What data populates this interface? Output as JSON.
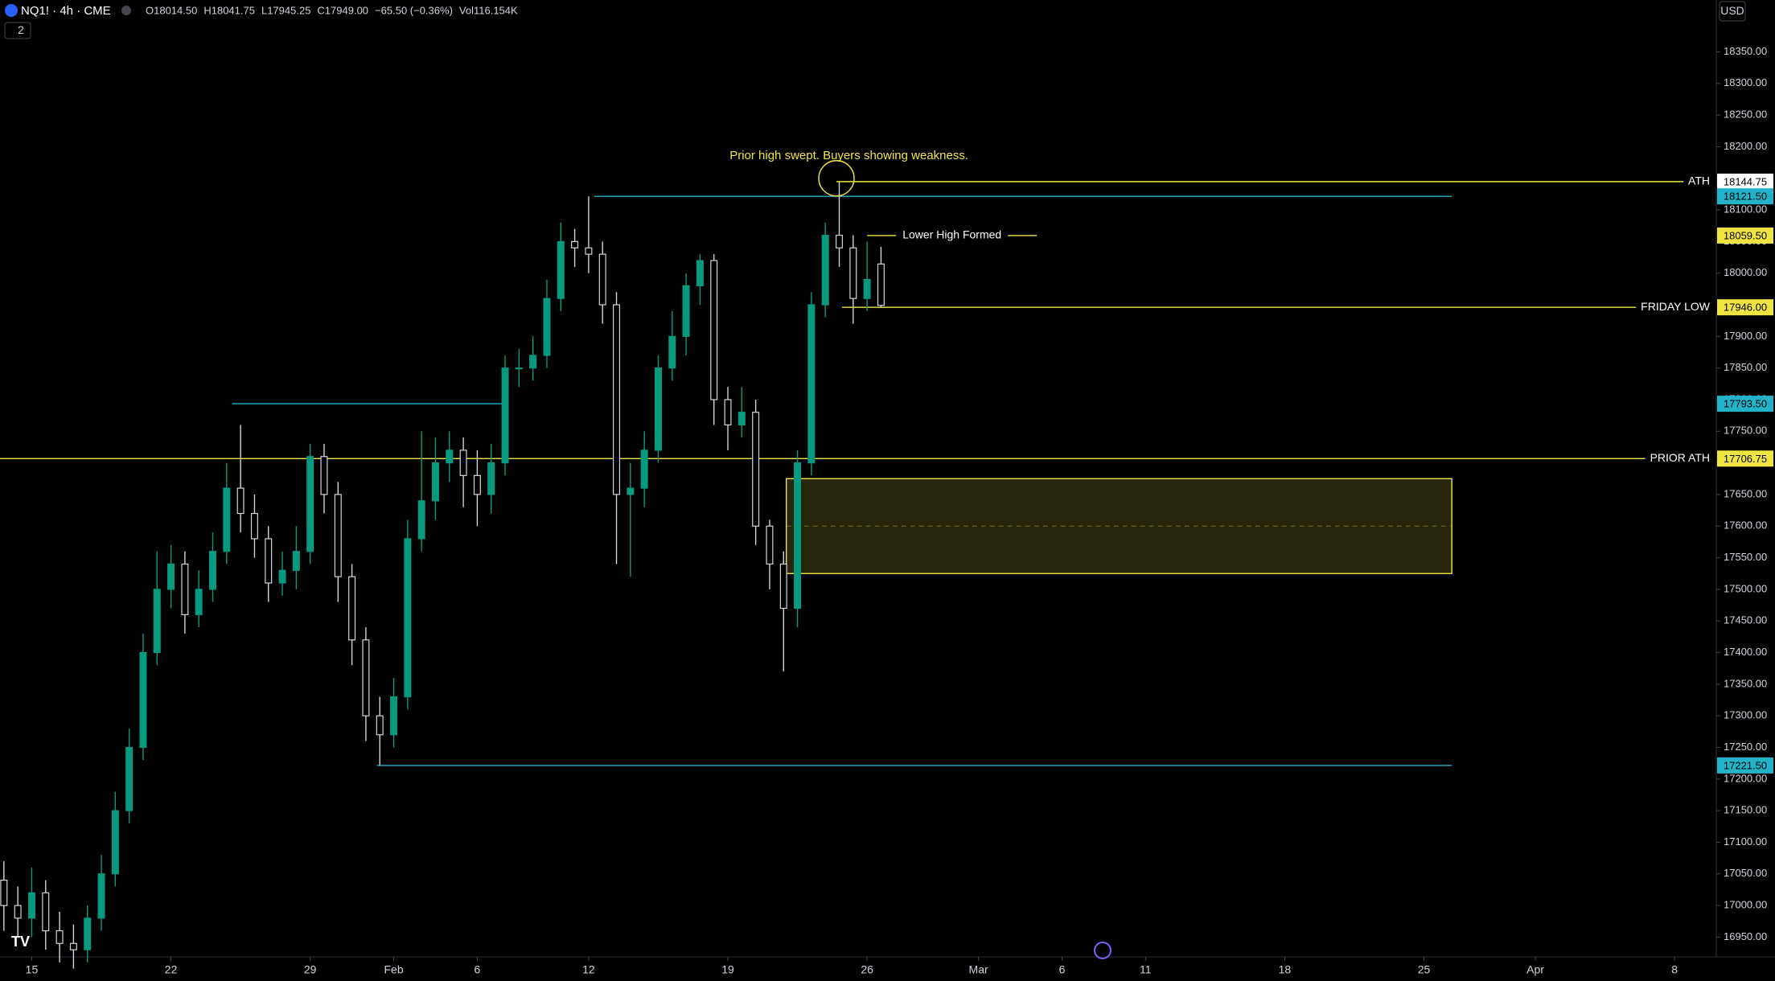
{
  "chart_data": {
    "type": "candlestick",
    "symbol": "NQ1! · 4h · CME",
    "legend": [
      "O18014.50",
      "H18041.75",
      "L17945.25",
      "C17949.00",
      "−65.50 (−0.36%)",
      "Vol116.154K"
    ],
    "indicator_count": "2",
    "currency": "USD",
    "up_color": "#089981",
    "down_color": "#d1d4dc",
    "x": [
      -1,
      -0.5,
      0,
      0.5,
      1,
      1.5,
      2,
      2.5,
      3,
      3.5,
      4,
      4.5,
      5,
      5.5,
      6,
      6.5,
      7,
      7.5,
      8,
      8.5,
      9,
      9.5,
      10,
      10.5,
      11,
      11.5,
      12,
      12.5,
      13,
      13.5,
      14,
      14.5,
      15,
      15.5,
      16,
      16.5,
      17,
      17.5,
      18,
      18.5,
      19,
      19.5,
      20,
      20.5,
      21,
      21.5,
      22,
      22.5,
      23,
      23.5,
      24,
      24.5,
      25,
      25.5,
      26,
      26.5,
      27,
      27.5,
      28,
      28.5,
      29,
      29.5,
      30,
      30.5
    ],
    "open": [
      17040,
      17000,
      16980,
      17020,
      16960,
      16940,
      16930,
      16980,
      17050,
      17150,
      17250,
      17400,
      17500,
      17540,
      17460,
      17500,
      17560,
      17660,
      17620,
      17580,
      17510,
      17530,
      17560,
      17710,
      17650,
      17520,
      17420,
      17300,
      17270,
      17330,
      17580,
      17640,
      17700,
      17720,
      17680,
      17650,
      17700,
      17850,
      17850,
      17870,
      17960,
      18050,
      18040,
      18030,
      17950,
      17650,
      17660,
      17720,
      17850,
      17900,
      17980,
      18020,
      17800,
      17760,
      17780,
      17600,
      17540,
      17470,
      17700,
      17950,
      18060,
      18040,
      17960,
      18014.5
    ],
    "high": [
      17070,
      17030,
      17060,
      17040,
      16990,
      16970,
      17000,
      17080,
      17180,
      17280,
      17430,
      17560,
      17570,
      17560,
      17530,
      17590,
      17700,
      17760,
      17650,
      17600,
      17560,
      17600,
      17730,
      17730,
      17670,
      17540,
      17440,
      17330,
      17360,
      17610,
      17750,
      17740,
      17750,
      17740,
      17720,
      17730,
      17870,
      17880,
      17900,
      17990,
      18080,
      18070,
      18121.5,
      18050,
      17970,
      17700,
      17750,
      17870,
      17940,
      18000,
      18030,
      18030,
      17820,
      17820,
      17800,
      17610,
      17560,
      17720,
      17970,
      18080,
      18144.75,
      18060,
      18050,
      18041.75
    ],
    "low": [
      16960,
      16950,
      16950,
      16930,
      16910,
      16900,
      16910,
      16960,
      17030,
      17130,
      17230,
      17380,
      17470,
      17430,
      17440,
      17480,
      17540,
      17590,
      17550,
      17480,
      17490,
      17500,
      17540,
      17620,
      17480,
      17380,
      17260,
      17221.5,
      17250,
      17310,
      17560,
      17610,
      17670,
      17630,
      17600,
      17620,
      17680,
      17820,
      17830,
      17850,
      17940,
      18010,
      18000,
      17920,
      17540,
      17520,
      17630,
      17700,
      17830,
      17870,
      17950,
      17760,
      17720,
      17740,
      17570,
      17500,
      17370,
      17440,
      17680,
      17930,
      18010,
      17920,
      17940,
      17945.25
    ],
    "close": [
      17000,
      16980,
      17020,
      16960,
      16940,
      16930,
      16980,
      17050,
      17150,
      17250,
      17400,
      17500,
      17540,
      17460,
      17500,
      17560,
      17660,
      17620,
      17580,
      17510,
      17530,
      17560,
      17710,
      17650,
      17520,
      17420,
      17300,
      17270,
      17330,
      17580,
      17640,
      17700,
      17720,
      17680,
      17650,
      17700,
      17850,
      17850,
      17870,
      17960,
      18050,
      18040,
      18030,
      17950,
      17650,
      17660,
      17720,
      17850,
      17900,
      17980,
      18020,
      17800,
      17760,
      17780,
      17600,
      17540,
      17470,
      17700,
      17950,
      18060,
      18040,
      17960,
      17990,
      17949
    ],
    "xlim": [
      -1.14,
      60.44
    ],
    "ylim": [
      16920,
      18432
    ],
    "xticks": [
      {
        "value": 0,
        "label": "15"
      },
      {
        "value": 5,
        "label": "22"
      },
      {
        "value": 10,
        "label": "29"
      },
      {
        "value": 13,
        "label": "Feb"
      },
      {
        "value": 16,
        "label": "6"
      },
      {
        "value": 20,
        "label": "12"
      },
      {
        "value": 25,
        "label": "19"
      },
      {
        "value": 30,
        "label": "26"
      },
      {
        "value": 34,
        "label": "Mar"
      },
      {
        "value": 37,
        "label": "6"
      },
      {
        "value": 40,
        "label": "11"
      },
      {
        "value": 45,
        "label": "18"
      },
      {
        "value": 50,
        "label": "25"
      },
      {
        "value": 54,
        "label": "Apr"
      },
      {
        "value": 59,
        "label": "8"
      }
    ],
    "yticks": [
      {
        "value": 16950,
        "label": "16950.00"
      },
      {
        "value": 17000,
        "label": "17000.00"
      },
      {
        "value": 17050,
        "label": "17050.00"
      },
      {
        "value": 17100,
        "label": "17100.00"
      },
      {
        "value": 17150,
        "label": "17150.00"
      },
      {
        "value": 17200,
        "label": "17200.00"
      },
      {
        "value": 17250,
        "label": "17250.00"
      },
      {
        "value": 17300,
        "label": "17300.00"
      },
      {
        "value": 17350,
        "label": "17350.00"
      },
      {
        "value": 17400,
        "label": "17400.00"
      },
      {
        "value": 17450,
        "label": "17450.00"
      },
      {
        "value": 17500,
        "label": "17500.00"
      },
      {
        "value": 17550,
        "label": "17550.00"
      },
      {
        "value": 17600,
        "label": "17600.00"
      },
      {
        "value": 17650,
        "label": "17650.00"
      },
      {
        "value": 17700,
        "label": "17700.00"
      },
      {
        "value": 17750,
        "label": "17750.00"
      },
      {
        "value": 17800,
        "label": "17800.00"
      },
      {
        "value": 17850,
        "label": "17850.00"
      },
      {
        "value": 17900,
        "label": "17900.00"
      },
      {
        "value": 17950,
        "label": "17950.00"
      },
      {
        "value": 18000,
        "label": "18000.00"
      },
      {
        "value": 18050,
        "label": "18050.00"
      },
      {
        "value": 18100,
        "label": "18100.00"
      },
      {
        "value": 18150,
        "label": "18150.00"
      },
      {
        "value": 18200,
        "label": "18200.00"
      },
      {
        "value": 18250,
        "label": "18250.00"
      },
      {
        "value": 18300,
        "label": "18300.00"
      },
      {
        "value": 18350,
        "label": "18350.00"
      }
    ],
    "levels": [
      {
        "name": "ATH",
        "value": 18144.75,
        "label": "18144.75",
        "color": "#f0e442",
        "badge_color": "#ffffff",
        "x0": 28.9,
        "name_position": "right"
      },
      {
        "value": 18121.5,
        "label": "18121.50",
        "color": "#22b3c9",
        "badge_color": "#22b3c9",
        "x0": 20.2,
        "x1": 51.0
      },
      {
        "name": "Lower High Formed",
        "value": 18059.5,
        "label": "18059.50",
        "color": "#f0e442",
        "badge_color": "#f0e442",
        "x0": 30.0,
        "x1": 36.1,
        "name_position": "middle"
      },
      {
        "name": "FRIDAY LOW",
        "value": 17946,
        "label": "17946.00",
        "color": "#f0e442",
        "badge_color": "#f0e442",
        "x0": 29.1,
        "name_position": "right"
      },
      {
        "value": 17793.5,
        "label": "17793.50",
        "color": "#22b3c9",
        "badge_color": "#22b3c9",
        "x0": 7.2,
        "x1": 17.1
      },
      {
        "name": "PRIOR ATH",
        "value": 17706.75,
        "label": "17706.75",
        "color": "#f0e442",
        "badge_color": "#f0e442",
        "name_position": "right"
      },
      {
        "value": 17221.5,
        "label": "17221.50",
        "color": "#22b3c9",
        "badge_color": "#22b3c9",
        "x0": 12.4,
        "x1": 51.0
      }
    ],
    "zone": {
      "top": 17675,
      "bottom": 17525,
      "mid": 17600,
      "x0": 27.1,
      "x1": 51.0,
      "color": "#f0e442"
    },
    "circle": {
      "x": 28.9,
      "y": 18150,
      "color": "#f0e442"
    },
    "annotation": {
      "text": "Prior high swept. Buyers showing weakness.",
      "x": 29.35,
      "y": 18185,
      "color": "#f0e442"
    }
  }
}
